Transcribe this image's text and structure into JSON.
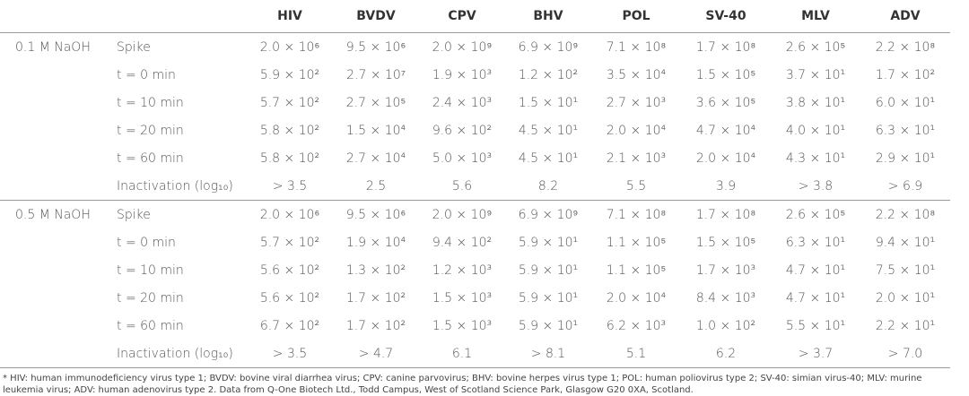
{
  "table": {
    "columns": [
      "HIV",
      "BVDV",
      "CPV",
      "BHV",
      "POL",
      "SV-40",
      "MLV",
      "ADV"
    ],
    "groups": [
      {
        "label": "0.1 M NaOH",
        "rows": [
          {
            "label": "Spike",
            "cells": [
              "2.0 × 10⁶",
              "9.5 × 10⁶",
              "2.0 × 10⁹",
              "6.9 × 10⁹",
              "7.1 × 10⁸",
              "1.7 × 10⁸",
              "2.6 × 10⁵",
              "2.2 × 10⁸"
            ]
          },
          {
            "label": "t = 0 min",
            "cells": [
              "5.9 × 10²",
              "2.7 × 10⁷",
              "1.9 × 10³",
              "1.2 × 10²",
              "3.5 × 10⁴",
              "1.5 × 10⁵",
              "3.7 × 10¹",
              "1.7 × 10²"
            ]
          },
          {
            "label": "t = 10 min",
            "cells": [
              "5.7 × 10²",
              "2.7 × 10⁵",
              "2.4 × 10³",
              "1.5 × 10¹",
              "2.7 × 10³",
              "3.6 × 10⁵",
              "3.8 × 10¹",
              "6.0 × 10¹"
            ]
          },
          {
            "label": "t = 20 min",
            "cells": [
              "5.8 × 10²",
              "1.5 × 10⁴",
              "9.6 × 10²",
              "4.5 × 10¹",
              "2.0 × 10⁴",
              "4.7 × 10⁴",
              "4.0 × 10¹",
              "6.3 × 10¹"
            ]
          },
          {
            "label": "t = 60 min",
            "cells": [
              "5.8 × 10²",
              "2.7 × 10⁴",
              "5.0 × 10³",
              "4.5 × 10¹",
              "2.1 × 10³",
              "2.0 × 10⁴",
              "4.3 × 10¹",
              "2.9 × 10¹"
            ]
          },
          {
            "label": "Inactivation (log₁₀)",
            "cells": [
              "> 3.5",
              "2.5",
              "5.6",
              "8.2",
              "5.5",
              "3.9",
              "> 3.8",
              "> 6.9"
            ]
          }
        ]
      },
      {
        "label": "0.5 M NaOH",
        "rows": [
          {
            "label": "Spike",
            "cells": [
              "2.0 × 10⁶",
              "9.5 × 10⁶",
              "2.0 × 10⁹",
              "6.9 × 10⁹",
              "7.1 × 10⁸",
              "1.7 × 10⁸",
              "2.6 × 10⁵",
              "2.2 × 10⁸"
            ]
          },
          {
            "label": "t = 0 min",
            "cells": [
              "5.7 × 10²",
              "1.9 × 10⁴",
              "9.4 × 10²",
              "5.9 × 10¹",
              "1.1 × 10⁵",
              "1.5 × 10⁵",
              "6.3 × 10¹",
              "9.4 × 10¹"
            ]
          },
          {
            "label": "t = 10 min",
            "cells": [
              "5.6 × 10²",
              "1.3 × 10²",
              "1.2 × 10³",
              "5.9 × 10¹",
              "1.1 × 10⁵",
              "1.7 × 10³",
              "4.7 × 10¹",
              "7.5 × 10¹"
            ]
          },
          {
            "label": "t = 20 min",
            "cells": [
              "5.6 × 10²",
              "1.7 × 10²",
              "1.5 × 10³",
              "5.9 × 10¹",
              "2.0 × 10⁴",
              "8.4 × 10³",
              "4.7 × 10¹",
              "2.0 × 10¹"
            ]
          },
          {
            "label": "t = 60 min",
            "cells": [
              "6.7 × 10²",
              "1.7 × 10²",
              "1.5 × 10³",
              "5.9 × 10¹",
              "6.2 × 10³",
              "1.0 × 10²",
              "5.5 × 10¹",
              "2.2 × 10¹"
            ]
          },
          {
            "label": "Inactivation (log₁₀)",
            "cells": [
              "> 3.5",
              "> 4.7",
              "6.1",
              "> 8.1",
              "5.1",
              "6.2",
              "> 3.7",
              "> 7.0"
            ]
          }
        ]
      }
    ]
  },
  "footnote": "* HIV: human immunodeficiency virus type 1; BVDV: bovine viral diarrhea virus; CPV: canine parvovirus; BHV: bovine herpes virus type 1; POL: human poliovirus type 2; SV-40: simian virus-40; MLV: murine leukemia virus; ADV: human adenovirus type 2. Data from Q-One Biotech Ltd., Todd Campus, West of Scotland Science Park, Glasgow G20 0XA, Scotland."
}
